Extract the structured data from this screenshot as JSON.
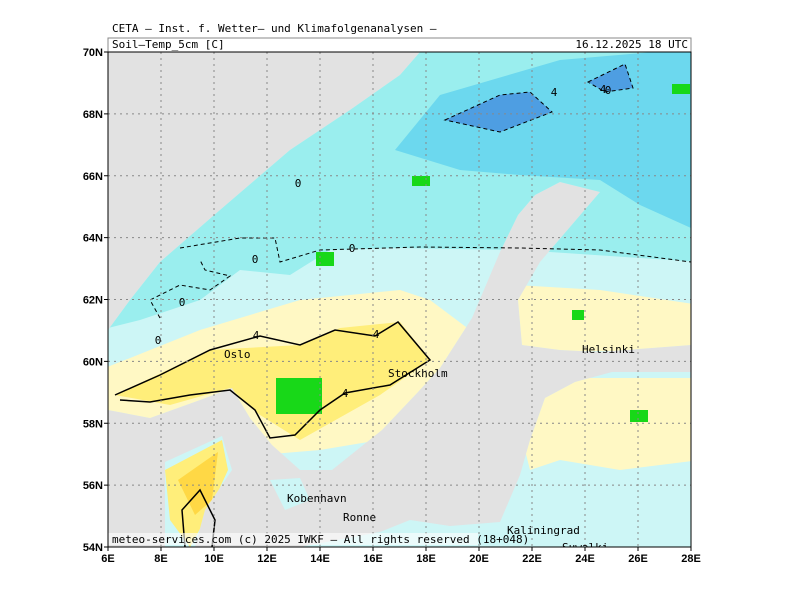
{
  "header": {
    "institution": "CETA – Inst. f. Wetter– und Klimafolgenanalysen –",
    "field": "Soil–Temp_5cm [C]",
    "valid_time": "16.12.2025 18 UTC"
  },
  "axes": {
    "lon_labels": [
      "6E",
      "8E",
      "10E",
      "12E",
      "14E",
      "16E",
      "18E",
      "20E",
      "22E",
      "24E",
      "26E",
      "28E"
    ],
    "lat_labels": [
      "54N",
      "56N",
      "58N",
      "60N",
      "62N",
      "64N",
      "66N",
      "68N",
      "70N"
    ]
  },
  "places": [
    "Oslo",
    "Stockholm",
    "Helsinki",
    "Kobenhavn",
    "Ronne",
    "Kaliningrad",
    "Suwalki"
  ],
  "contour_labels": [
    "0",
    "0",
    "0",
    "0",
    "0",
    "0",
    "4",
    "4",
    "4",
    "4",
    "4"
  ],
  "footer": "meteo-services.com (c) 2025 IWKF – All rights reserved (18+048)"
}
